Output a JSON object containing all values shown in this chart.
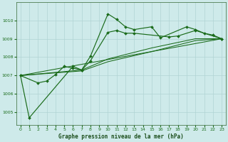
{
  "title": "Graphe pression niveau de la mer (hPa)",
  "bg_color": "#ceeaea",
  "grid_color": "#b0d4d4",
  "line_color": "#1a6b1a",
  "xlim": [
    -0.5,
    23.5
  ],
  "ylim": [
    1004.3,
    1011.0
  ],
  "yticks": [
    1005,
    1006,
    1007,
    1008,
    1009,
    1010
  ],
  "xticks": [
    0,
    1,
    2,
    3,
    4,
    5,
    6,
    7,
    8,
    9,
    10,
    11,
    12,
    13,
    14,
    15,
    16,
    17,
    18,
    19,
    20,
    21,
    22,
    23
  ],
  "line1_x": [
    0,
    1,
    6,
    7,
    8,
    10,
    11,
    12,
    13,
    15,
    16,
    19,
    20,
    21,
    22,
    23
  ],
  "line1_y": [
    1007.0,
    1004.7,
    1007.5,
    1007.3,
    1008.05,
    1010.35,
    1010.05,
    1009.65,
    1009.5,
    1009.65,
    1009.05,
    1009.65,
    1009.5,
    1009.3,
    1009.2,
    1009.0
  ],
  "line2_x": [
    0,
    2,
    3,
    4,
    5,
    6,
    7,
    8,
    10,
    11,
    12,
    13,
    17,
    18,
    20,
    23
  ],
  "line2_y": [
    1007.0,
    1006.6,
    1006.7,
    1007.05,
    1007.5,
    1007.4,
    1007.3,
    1007.8,
    1009.35,
    1009.45,
    1009.3,
    1009.3,
    1009.1,
    1009.15,
    1009.45,
    1009.0
  ],
  "line3_x": [
    0,
    23
  ],
  "line3_y": [
    1007.0,
    1009.0
  ],
  "line4_x": [
    0,
    7,
    10,
    15,
    20,
    23
  ],
  "line4_y": [
    1007.0,
    1007.3,
    1007.9,
    1008.5,
    1009.0,
    1009.0
  ],
  "line5_x": [
    0,
    7,
    10,
    15,
    20,
    23
  ],
  "line5_y": [
    1007.0,
    1007.25,
    1007.75,
    1008.3,
    1008.9,
    1009.0
  ]
}
